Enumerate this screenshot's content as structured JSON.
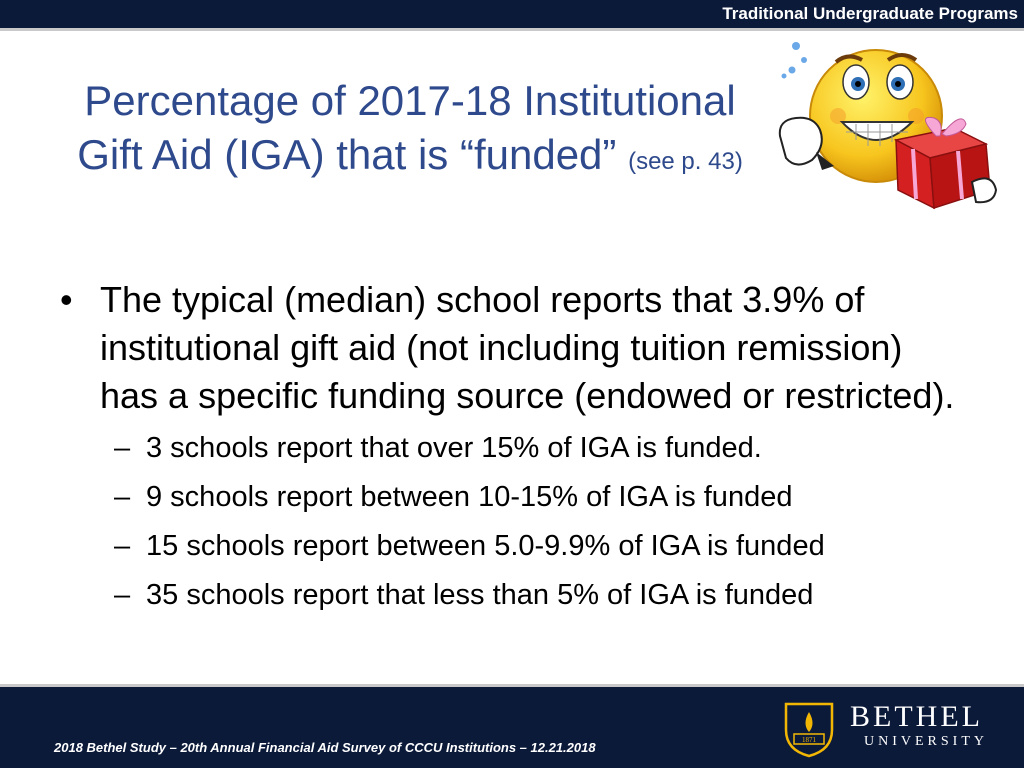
{
  "header": {
    "program_label": "Traditional Undergraduate Programs"
  },
  "slide": {
    "title_main": "Percentage of 2017-18 Institutional Gift Aid (IGA) that is “funded”",
    "title_note": "(see p. 43)",
    "bullet": "The typical (median) school reports that 3.9% of institutional gift aid (not including tuition remission) has a specific funding source (endowed or restricted).",
    "subpoints": [
      "3 schools report that over 15% of IGA is funded.",
      "9 schools report between 10-15% of IGA is funded",
      "15 schools report between 5.0-9.9% of IGA is funded",
      "35 schools report that less than 5% of IGA is funded"
    ]
  },
  "footer": {
    "citation": "2018 Bethel Study – 20th Annual Financial Aid Survey of CCCU Institutions – 12.21.2018",
    "logo_name": "BETHEL",
    "logo_sub": "UNIVERSITY",
    "logo_year": "1871"
  },
  "colors": {
    "navy": "#0c1a3a",
    "title_blue": "#2e4a8c",
    "gold": "#f2b705"
  },
  "icons": [
    "excited-smiley-with-gift-icon",
    "bethel-shield-icon"
  ]
}
